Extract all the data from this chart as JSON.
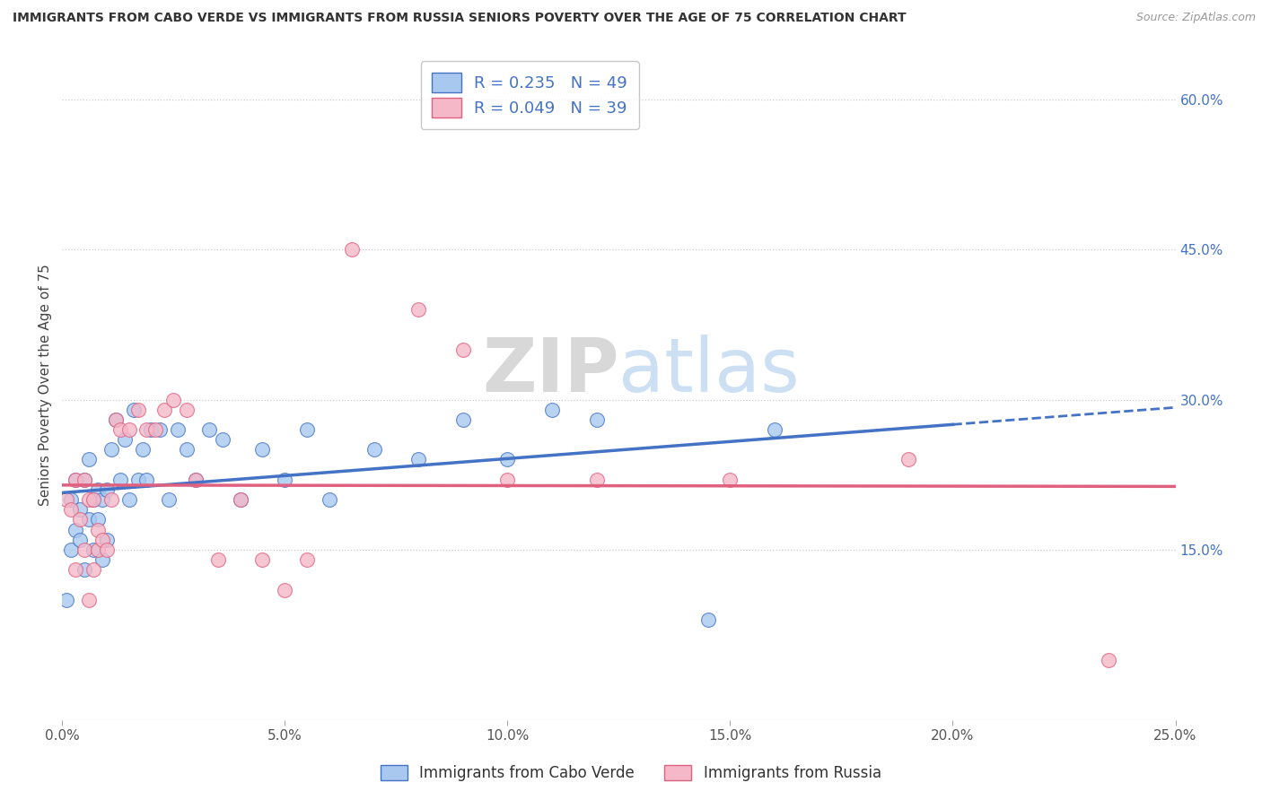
{
  "title": "IMMIGRANTS FROM CABO VERDE VS IMMIGRANTS FROM RUSSIA SENIORS POVERTY OVER THE AGE OF 75 CORRELATION CHART",
  "source": "Source: ZipAtlas.com",
  "ylabel": "Seniors Poverty Over the Age of 75",
  "legend_label1": "Immigrants from Cabo Verde",
  "legend_label2": "Immigrants from Russia",
  "R1": 0.235,
  "N1": 49,
  "R2": 0.049,
  "N2": 39,
  "color1": "#A8C8F0",
  "color2": "#F5B8C8",
  "line_color1": "#4472C4",
  "line_color2": "#E06080",
  "xmin": 0.0,
  "xmax": 0.25,
  "ymin": -0.02,
  "ymax": 0.65,
  "yticks_right": [
    0.15,
    0.3,
    0.45,
    0.6
  ],
  "ytick_labels_right": [
    "15.0%",
    "30.0%",
    "45.0%",
    "60.0%"
  ],
  "xticks": [
    0.0,
    0.05,
    0.1,
    0.15,
    0.2,
    0.25
  ],
  "xtick_labels": [
    "0.0%",
    "5.0%",
    "10.0%",
    "15.0%",
    "20.0%",
    "25.0%"
  ],
  "watermark_zip": "ZIP",
  "watermark_atlas": "atlas",
  "background_color": "#FFFFFF",
  "cabo_verde_x": [
    0.001,
    0.002,
    0.002,
    0.003,
    0.003,
    0.004,
    0.004,
    0.005,
    0.005,
    0.006,
    0.006,
    0.007,
    0.007,
    0.008,
    0.008,
    0.009,
    0.009,
    0.01,
    0.01,
    0.011,
    0.012,
    0.013,
    0.014,
    0.015,
    0.016,
    0.017,
    0.018,
    0.019,
    0.02,
    0.022,
    0.024,
    0.026,
    0.028,
    0.03,
    0.033,
    0.036,
    0.04,
    0.045,
    0.05,
    0.055,
    0.06,
    0.07,
    0.08,
    0.09,
    0.1,
    0.11,
    0.12,
    0.145,
    0.16
  ],
  "cabo_verde_y": [
    0.1,
    0.15,
    0.2,
    0.17,
    0.22,
    0.19,
    0.16,
    0.13,
    0.22,
    0.18,
    0.24,
    0.2,
    0.15,
    0.21,
    0.18,
    0.2,
    0.14,
    0.16,
    0.21,
    0.25,
    0.28,
    0.22,
    0.26,
    0.2,
    0.29,
    0.22,
    0.25,
    0.22,
    0.27,
    0.27,
    0.2,
    0.27,
    0.25,
    0.22,
    0.27,
    0.26,
    0.2,
    0.25,
    0.22,
    0.27,
    0.2,
    0.25,
    0.24,
    0.28,
    0.24,
    0.29,
    0.28,
    0.08,
    0.27
  ],
  "russia_x": [
    0.001,
    0.002,
    0.003,
    0.003,
    0.004,
    0.005,
    0.005,
    0.006,
    0.006,
    0.007,
    0.007,
    0.008,
    0.008,
    0.009,
    0.01,
    0.011,
    0.012,
    0.013,
    0.015,
    0.017,
    0.019,
    0.021,
    0.023,
    0.025,
    0.028,
    0.03,
    0.035,
    0.04,
    0.045,
    0.05,
    0.055,
    0.065,
    0.08,
    0.09,
    0.1,
    0.12,
    0.15,
    0.19,
    0.235
  ],
  "russia_y": [
    0.2,
    0.19,
    0.13,
    0.22,
    0.18,
    0.15,
    0.22,
    0.2,
    0.1,
    0.13,
    0.2,
    0.17,
    0.15,
    0.16,
    0.15,
    0.2,
    0.28,
    0.27,
    0.27,
    0.29,
    0.27,
    0.27,
    0.29,
    0.3,
    0.29,
    0.22,
    0.14,
    0.2,
    0.14,
    0.11,
    0.14,
    0.45,
    0.39,
    0.35,
    0.22,
    0.22,
    0.22,
    0.24,
    0.04
  ]
}
